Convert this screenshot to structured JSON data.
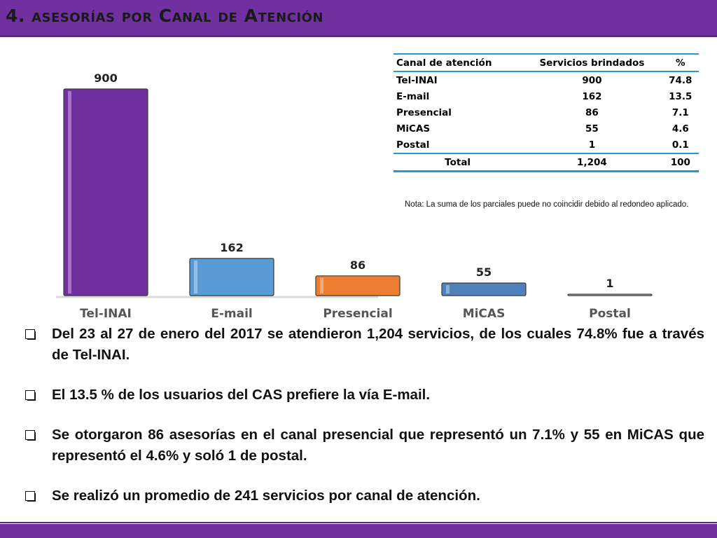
{
  "header": {
    "title": "4. asesorías por Canal de Atención"
  },
  "chart_data": {
    "type": "bar",
    "categories": [
      "Tel-INAI",
      "E-mail",
      "Presencial",
      "MiCAS",
      "Postal"
    ],
    "values": [
      900,
      162,
      86,
      55,
      1
    ],
    "data_labels": [
      "900",
      "162",
      "86",
      "55",
      "1"
    ],
    "colors": [
      "#7030a0",
      "#5b9bd5",
      "#ed7d31",
      "#4f81bd",
      "#bfbfbf"
    ],
    "ylim": [
      0,
      900
    ],
    "grid": false
  },
  "table": {
    "headers": [
      "Canal de atención",
      "Servicios brindados",
      "%"
    ],
    "rows": [
      [
        "Tel-INAI",
        "900",
        "74.8"
      ],
      [
        "E-mail",
        "162",
        "13.5"
      ],
      [
        "Presencial",
        "86",
        "7.1"
      ],
      [
        "MiCAS",
        "55",
        "4.6"
      ],
      [
        "Postal",
        "1",
        "0.1"
      ]
    ],
    "total": [
      "Total",
      "1,204",
      "100"
    ]
  },
  "note": "Nota: La suma de los parciales puede no coincidir debido al redondeo aplicado.",
  "bullets": [
    "Del 23 al 27 de enero del 2017 se atendieron 1,204 servicios, de los cuales 74.8% fue a través de Tel-INAI.",
    "El 13.5 % de los usuarios del CAS prefiere la vía E-mail.",
    "Se otorgaron 86 asesorías en el canal presencial que representó un 7.1% y 55 en MiCAS que representó el 4.6% y soló 1 de postal.",
    "Se realizó un promedio de 241 servicios por canal de atención."
  ]
}
